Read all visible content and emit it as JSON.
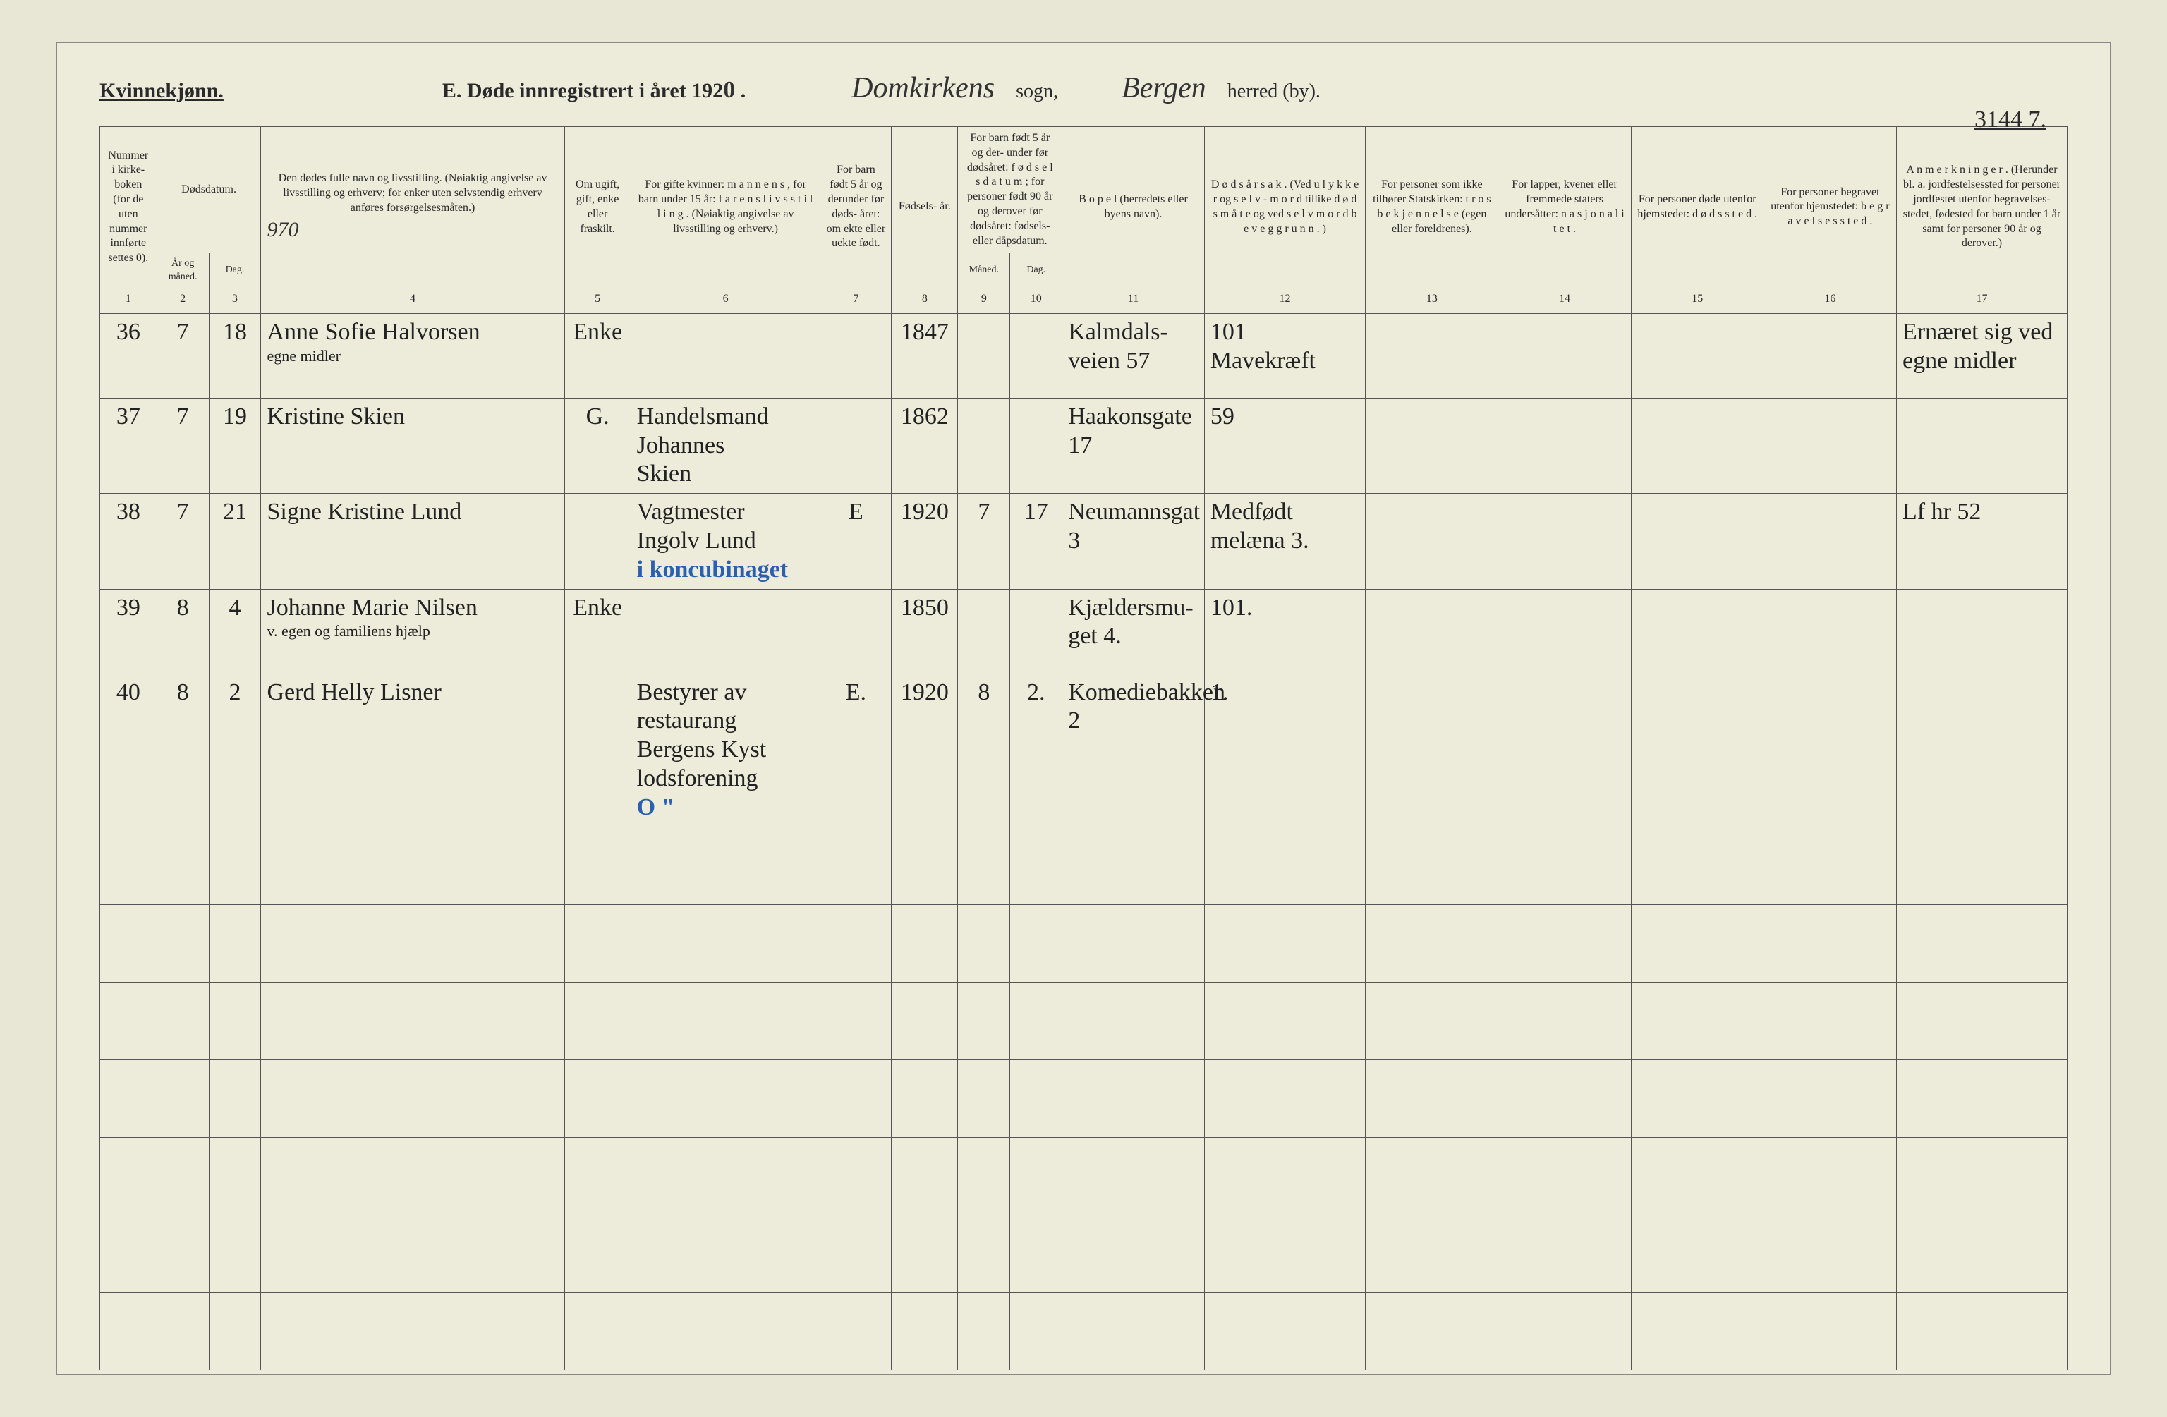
{
  "header": {
    "kvinnekjonn": "Kvinnekjønn.",
    "title_prefix": "E.  Døde innregistrert i året 192",
    "year_digit": "0",
    "title_suffix": " .",
    "sogn_hand": "Domkirkens",
    "sogn_label": "sogn,",
    "herred_hand": "Bergen",
    "herred_label": "herred (by).",
    "page_number": "3144 7."
  },
  "columns": {
    "c1": "Nummer i kirke-\nboken\n(for de\nuten\nnummer\ninnførte\nsettes\n0).",
    "c23_top": "Dødsdatum.",
    "c2": "År\nog\nmåned.",
    "c3": "Dag.",
    "c4": "Den dødes fulle navn og livsstilling.\n(Nøiaktig angivelse av livsstilling og erhverv;\nfor enker uten selvstendig erhverv\nanføres forsørgelsesmåten.)",
    "c4_hand": "970",
    "c5": "Om\nugift,\ngift,\nenke\neller\nfraskilt.",
    "c6": "For gifte kvinner:\nm a n n e n s ,\nfor barn under 15 år:\nf a r e n s  l i v s s t i l l i n g .\n(Nøiaktig angivelse av\nlivsstilling og erhverv.)",
    "c7": "For barn\nfødt\n5 år og\nderunder\nfør døds-\nåret:\nom ekte\neller\nuekte\nfødt.",
    "c8": "Fødsels-\når.",
    "c910_top": "For barn født\n5 år og der-\nunder før\ndødsåret:\nf ø d s e l s d a t u m ;\nfor personer\nfødt 90 år\nog derover før\ndødsåret:\nfødsels- eller\ndåpsdatum.",
    "c9": "Måned.",
    "c10": "Dag.",
    "c11": "B o p e l\n(herredets eller byens\nnavn).",
    "c12": "D ø d s å r s a k .\n(Ved u l y k k e r og s e l v -\nm o r d tillike d ø d s m å t e\nog ved s e l v m o r d\nb e v e g g r u n n . )",
    "c13": "For personer\nsom ikke tilhører\nStatskirken:\nt r o s b e k j e n n e l s e\n(egen eller foreldrenes).",
    "c14": "For lapper, kvener\neller fremmede\nstaters undersåtter:\nn a s j o n a l i t e t .",
    "c15": "For personer døde\nutenfor hjemstedet:\nd ø d s s t e d .",
    "c16": "For personer begravet\nutenfor hjemstedet:\nb e g r a v e l s e s s t e d .",
    "c17": "A n m e r k n i n g e r .\n(Herunder bl. a.\njordfestelsessted for\npersoner jordfestet\nutenfor begravelses-\nstedet, fødested for\nbarn under 1 år\nsamt for personer\n90 år og derover.)"
  },
  "colnums": [
    "1",
    "2",
    "3",
    "4",
    "5",
    "6",
    "7",
    "8",
    "9",
    "10",
    "11",
    "12",
    "13",
    "14",
    "15",
    "16",
    "17"
  ],
  "rows": [
    {
      "n": "36",
      "aar": "7",
      "dag": "18",
      "navn": "Anne Sofie Halvorsen",
      "navn2": "egne midler",
      "sivil": "Enke",
      "mann": "",
      "ekte": "",
      "faar": "1847",
      "fm": "",
      "fd": "",
      "bopel": "Kalmdals-\nveien 57",
      "aarsak": "101\nMavekræft",
      "c13": "",
      "c14": "",
      "c15": "",
      "c16": "",
      "anm": "Ernæret sig ved\negne midler"
    },
    {
      "n": "37",
      "aar": "7",
      "dag": "19",
      "navn": "Kristine Skien",
      "navn2": "",
      "sivil": "G.",
      "mann": "Handelsmand\nJohannes\nSkien",
      "ekte": "",
      "faar": "1862",
      "fm": "",
      "fd": "",
      "bopel": "Haakonsgate\n17",
      "aarsak": "59",
      "c13": "",
      "c14": "",
      "c15": "",
      "c16": "",
      "anm": ""
    },
    {
      "n": "38",
      "aar": "7",
      "dag": "21",
      "navn": "Signe Kristine Lund",
      "navn2": "",
      "sivil": "",
      "mann": "Vagtmester\nIngolv Lund",
      "ekte": "E",
      "faar": "1920",
      "fm": "7",
      "fd": "17",
      "bopel": "Neumannsgat\n3",
      "aarsak": "Medfødt\nmelæna 3.",
      "c13": "",
      "c14": "",
      "c15": "",
      "c16": "",
      "anm": "Lf hr 52",
      "blue": "i koncubinaget"
    },
    {
      "n": "39",
      "aar": "8",
      "dag": "4",
      "navn": "Johanne Marie Nilsen",
      "navn2": "v. egen og familiens hjælp",
      "sivil": "Enke",
      "mann": "",
      "ekte": "",
      "faar": "1850",
      "fm": "",
      "fd": "",
      "bopel": "Kjældersmu-\nget 4.",
      "aarsak": "101.",
      "c13": "",
      "c14": "",
      "c15": "",
      "c16": "",
      "anm": ""
    },
    {
      "n": "40",
      "aar": "8",
      "dag": "2",
      "navn": "Gerd Helly Lisner",
      "navn2": "",
      "sivil": "",
      "mann": "Bestyrer av\nrestaurang\nBergens Kyst\nlodsforening",
      "ekte": "E.",
      "faar": "1920",
      "fm": "8",
      "fd": "2.",
      "bopel": "Komediebakken\n2",
      "aarsak": "1.",
      "c13": "",
      "c14": "",
      "c15": "",
      "c16": "",
      "anm": "",
      "blue": "O \""
    }
  ],
  "empty_row_count": 7,
  "styling": {
    "page_bg": "#edebd9",
    "body_bg": "#e8e6d4",
    "border_color": "#555",
    "text_color": "#2a2a2a",
    "hand_color": "#333",
    "blue_color": "#2b5fb0",
    "header_font_size": 28,
    "th_font_size": 16,
    "hand_font_size": 34
  }
}
